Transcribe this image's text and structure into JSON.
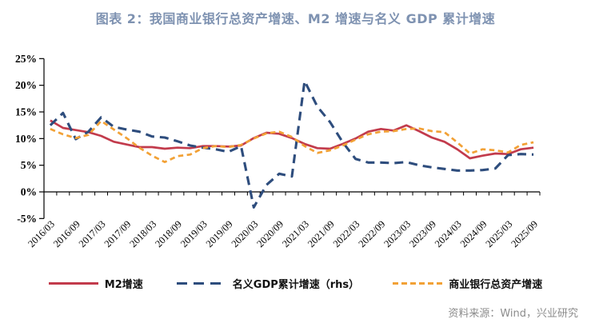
{
  "page": {
    "title": "图表 2：我国商业银行总资产增速、M2 增速与名义 GDP 累计增速",
    "title_color": "#7E92B1",
    "source": "资料来源：Wind，兴业研究",
    "source_color": "#8C8C8C"
  },
  "chart_data": {
    "type": "line",
    "title": "图表 2：我国商业银行总资产增速、M2 增速与名义 GDP 累计增速",
    "xlabel": "",
    "ylabel": "",
    "ylim": [
      -5,
      25
    ],
    "yticks": [
      25,
      20,
      15,
      10,
      5,
      0,
      -5
    ],
    "ytick_suffix": "%",
    "grid": false,
    "legend_position": "bottom",
    "axis_color": "#000000",
    "x": [
      "2016/03",
      "2016/06",
      "2016/09",
      "2016/12",
      "2017/03",
      "2017/06",
      "2017/09",
      "2017/12",
      "2018/03",
      "2018/06",
      "2018/09",
      "2018/12",
      "2019/03",
      "2019/06",
      "2019/09",
      "2019/12",
      "2020/03",
      "2020/06",
      "2020/09",
      "2020/12",
      "2021/03",
      "2021/06",
      "2021/09",
      "2021/12",
      "2022/03",
      "2022/06",
      "2022/09",
      "2022/12",
      "2023/03",
      "2023/06",
      "2023/09",
      "2023/12",
      "2024/03",
      "2024/06",
      "2024/09",
      "2024/12",
      "2025/03",
      "2025/06",
      "2025/09"
    ],
    "x_labels_every": 2,
    "series": [
      {
        "id": "m2",
        "name": "M2增速",
        "color": "#C23B4C",
        "dash": "solid",
        "values": [
          13.4,
          12.0,
          11.6,
          11.2,
          10.5,
          9.4,
          8.9,
          8.4,
          8.4,
          8.1,
          8.3,
          8.2,
          8.6,
          8.6,
          8.5,
          8.7,
          10.1,
          11.1,
          10.9,
          10.1,
          9.0,
          8.2,
          8.1,
          9.0,
          10.0,
          11.3,
          11.8,
          11.5,
          12.5,
          11.4,
          10.2,
          9.4,
          8.0,
          6.3,
          6.8,
          7.2,
          7.1,
          8.0,
          8.3
        ]
      },
      {
        "id": "nominal-gdp",
        "name": "名义GDP累计增速（rhs）",
        "color": "#2E4D7D",
        "dash": "long",
        "values": [
          12.5,
          14.8,
          9.9,
          11.3,
          14.0,
          12.2,
          11.7,
          11.3,
          10.4,
          10.2,
          9.5,
          8.7,
          8.3,
          8.0,
          7.5,
          8.6,
          -2.9,
          1.3,
          3.4,
          2.9,
          20.8,
          16.0,
          13.1,
          9.3,
          6.2,
          5.5,
          5.5,
          5.4,
          5.6,
          5.0,
          4.6,
          4.3,
          4.0,
          4.0,
          4.1,
          4.4,
          6.9,
          7.1,
          7.0
        ]
      },
      {
        "id": "bank-assets",
        "name": "商业银行总资产增速",
        "color": "#F2A136",
        "dash": "short",
        "values": [
          11.8,
          10.8,
          10.1,
          10.7,
          13.3,
          11.7,
          10.1,
          8.3,
          6.8,
          5.6,
          6.7,
          7.0,
          8.2,
          8.6,
          8.4,
          8.8,
          10.0,
          11.0,
          11.3,
          10.3,
          8.6,
          7.3,
          7.8,
          8.7,
          9.8,
          10.8,
          11.3,
          11.4,
          11.8,
          11.9,
          11.4,
          11.2,
          9.3,
          7.2,
          8.0,
          7.8,
          7.4,
          8.8,
          9.3
        ]
      }
    ]
  }
}
